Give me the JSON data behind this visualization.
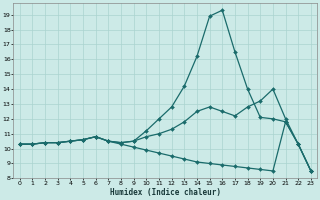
{
  "title": "",
  "xlabel": "Humidex (Indice chaleur)",
  "bg_color": "#cceae7",
  "line_color": "#1a6b6b",
  "grid_color": "#aad4d0",
  "xlim": [
    -0.5,
    23.5
  ],
  "ylim": [
    8.0,
    19.8
  ],
  "yticks": [
    8,
    9,
    10,
    11,
    12,
    13,
    14,
    15,
    16,
    17,
    18,
    19
  ],
  "xticks": [
    0,
    1,
    2,
    3,
    4,
    5,
    6,
    7,
    8,
    9,
    10,
    11,
    12,
    13,
    14,
    15,
    16,
    17,
    18,
    19,
    20,
    21,
    22,
    23
  ],
  "line1_x": [
    0,
    1,
    2,
    3,
    4,
    5,
    6,
    7,
    8,
    9,
    10,
    11,
    12,
    13,
    14,
    15,
    16,
    17,
    18,
    19,
    20,
    21,
    22,
    23
  ],
  "line1_y": [
    10.3,
    10.3,
    10.4,
    10.4,
    10.5,
    10.6,
    10.8,
    10.5,
    10.4,
    10.5,
    11.2,
    12.0,
    12.8,
    14.2,
    16.2,
    18.9,
    19.3,
    16.5,
    14.0,
    12.1,
    12.0,
    11.8,
    10.3,
    8.5
  ],
  "line2_x": [
    0,
    1,
    2,
    3,
    4,
    5,
    6,
    7,
    8,
    9,
    10,
    11,
    12,
    13,
    14,
    15,
    16,
    17,
    18,
    19,
    20,
    21,
    22,
    23
  ],
  "line2_y": [
    10.3,
    10.3,
    10.4,
    10.4,
    10.5,
    10.6,
    10.8,
    10.5,
    10.4,
    10.5,
    10.8,
    11.0,
    11.3,
    11.8,
    12.5,
    12.8,
    12.5,
    12.2,
    12.8,
    13.2,
    14.0,
    12.0,
    10.3,
    8.5
  ],
  "line3_x": [
    0,
    1,
    2,
    3,
    4,
    5,
    6,
    7,
    8,
    9,
    10,
    11,
    12,
    13,
    14,
    15,
    16,
    17,
    18,
    19,
    20,
    21,
    22,
    23
  ],
  "line3_y": [
    10.3,
    10.3,
    10.4,
    10.4,
    10.5,
    10.6,
    10.8,
    10.5,
    10.3,
    10.1,
    9.9,
    9.7,
    9.5,
    9.3,
    9.1,
    9.0,
    8.9,
    8.8,
    8.7,
    8.6,
    8.5,
    11.8,
    10.3,
    8.5
  ]
}
